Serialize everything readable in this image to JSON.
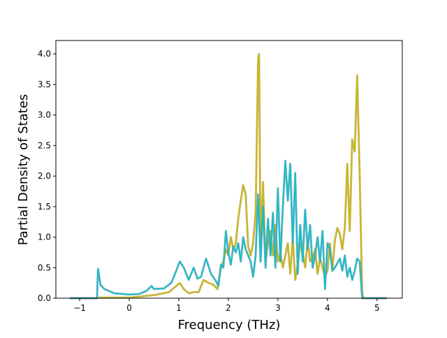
{
  "chart_data": {
    "type": "line",
    "title": "",
    "xlabel": "Frequency (THz)",
    "ylabel": "Partial Density of States",
    "xlim": [
      -1.48,
      5.51
    ],
    "ylim": [
      0,
      4.22
    ],
    "xticks": [
      -1,
      0,
      1,
      2,
      3,
      4,
      5
    ],
    "xtick_labels": [
      "−1",
      "0",
      "1",
      "2",
      "3",
      "4",
      "5"
    ],
    "yticks": [
      0,
      0.5,
      1,
      1.5,
      2,
      2.5,
      3,
      3.5,
      4
    ],
    "ytick_labels": [
      "0.0",
      "0.5",
      "1.0",
      "1.5",
      "2.0",
      "2.5",
      "3.0",
      "3.5",
      "4.0"
    ],
    "grid": false,
    "series": [
      {
        "name": "olive",
        "color": "#bcbd22",
        "edge_color": "#e07b39",
        "x": [
          -1.2,
          -0.65,
          -0.6,
          0,
          0.5,
          0.8,
          0.95,
          1.02,
          1.1,
          1.2,
          1.3,
          1.4,
          1.5,
          1.6,
          1.7,
          1.78,
          1.85,
          1.9,
          1.95,
          2.0,
          2.05,
          2.1,
          2.15,
          2.2,
          2.25,
          2.3,
          2.35,
          2.4,
          2.45,
          2.5,
          2.55,
          2.6,
          2.62,
          2.65,
          2.7,
          2.75,
          2.8,
          2.85,
          2.9,
          2.95,
          3.0,
          3.05,
          3.1,
          3.15,
          3.2,
          3.25,
          3.3,
          3.35,
          3.4,
          3.45,
          3.5,
          3.55,
          3.6,
          3.65,
          3.7,
          3.75,
          3.8,
          3.85,
          3.95,
          4.0,
          4.05,
          4.1,
          4.15,
          4.2,
          4.25,
          4.3,
          4.35,
          4.4,
          4.45,
          4.5,
          4.55,
          4.6,
          4.65,
          4.7,
          4.72,
          5.2
        ],
        "y": [
          0,
          0,
          0.01,
          0.01,
          0.05,
          0.1,
          0.2,
          0.25,
          0.15,
          0.08,
          0.1,
          0.1,
          0.3,
          0.25,
          0.22,
          0.15,
          0.5,
          0.6,
          0.8,
          0.7,
          1.0,
          0.8,
          0.9,
          1.3,
          1.6,
          1.85,
          1.7,
          0.85,
          0.7,
          0.9,
          1.4,
          3.9,
          4.0,
          0.8,
          1.9,
          0.6,
          0.9,
          1.1,
          0.7,
          1.2,
          0.6,
          0.75,
          0.5,
          0.7,
          0.9,
          0.4,
          1.0,
          0.3,
          0.55,
          0.9,
          0.75,
          0.5,
          0.95,
          0.6,
          0.65,
          0.8,
          0.4,
          0.65,
          0.35,
          0.45,
          0.9,
          0.45,
          0.95,
          1.15,
          1.05,
          0.8,
          1.15,
          2.2,
          1.1,
          2.6,
          2.4,
          3.65,
          2.0,
          0.1,
          0,
          0
        ]
      },
      {
        "name": "cyan",
        "color": "#17becf",
        "edge_color": "#7f7f7f",
        "x": [
          -1.2,
          -0.65,
          -0.63,
          -0.58,
          -0.5,
          -0.3,
          0,
          0.2,
          0.35,
          0.45,
          0.5,
          0.7,
          0.85,
          0.95,
          1.02,
          1.1,
          1.2,
          1.3,
          1.38,
          1.45,
          1.55,
          1.65,
          1.75,
          1.8,
          1.85,
          1.9,
          1.95,
          2.0,
          2.05,
          2.1,
          2.15,
          2.2,
          2.25,
          2.3,
          2.35,
          2.4,
          2.45,
          2.5,
          2.55,
          2.6,
          2.65,
          2.7,
          2.75,
          2.8,
          2.85,
          2.9,
          2.95,
          3.0,
          3.05,
          3.1,
          3.15,
          3.2,
          3.25,
          3.3,
          3.35,
          3.4,
          3.45,
          3.5,
          3.55,
          3.6,
          3.65,
          3.7,
          3.75,
          3.8,
          3.85,
          3.9,
          3.95,
          4.0,
          4.05,
          4.1,
          4.15,
          4.25,
          4.3,
          4.35,
          4.4,
          4.45,
          4.5,
          4.55,
          4.6,
          4.65,
          4.7,
          5.2
        ],
        "y": [
          0,
          0,
          0.48,
          0.22,
          0.15,
          0.08,
          0.06,
          0.07,
          0.12,
          0.2,
          0.15,
          0.16,
          0.25,
          0.45,
          0.6,
          0.5,
          0.3,
          0.5,
          0.32,
          0.35,
          0.65,
          0.4,
          0.28,
          0.2,
          0.55,
          0.5,
          1.1,
          0.75,
          0.55,
          0.85,
          0.75,
          0.9,
          0.6,
          1.0,
          0.8,
          0.7,
          0.6,
          0.35,
          0.7,
          1.7,
          0.6,
          1.5,
          0.5,
          1.3,
          0.7,
          1.4,
          0.5,
          1.8,
          0.6,
          1.5,
          2.25,
          1.6,
          2.2,
          0.9,
          2.05,
          0.4,
          1.2,
          0.6,
          1.45,
          0.8,
          1.2,
          0.5,
          0.7,
          1.0,
          0.6,
          1.1,
          0.15,
          0.9,
          0.8,
          0.45,
          0.5,
          0.65,
          0.45,
          0.7,
          0.35,
          0.5,
          0.3,
          0.45,
          0.65,
          0.6,
          0,
          0
        ]
      }
    ]
  }
}
